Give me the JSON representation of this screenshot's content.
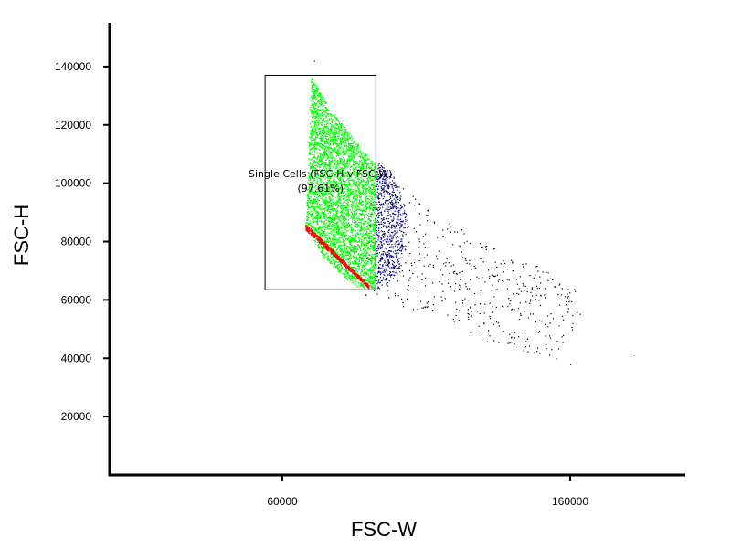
{
  "chart_data": {
    "type": "scatter",
    "title": "",
    "xlabel": "FSC-W",
    "ylabel": "FSC-H",
    "xlim": [
      0,
      200000
    ],
    "ylim": [
      0,
      155000
    ],
    "x_ticks": [
      {
        "value": 60000,
        "label": "60000"
      },
      {
        "value": 160000,
        "label": "160000"
      }
    ],
    "y_ticks": [
      {
        "value": 20000,
        "label": "20000"
      },
      {
        "value": 40000,
        "label": "40000"
      },
      {
        "value": 60000,
        "label": "60000"
      },
      {
        "value": 80000,
        "label": "80000"
      },
      {
        "value": 100000,
        "label": "100000"
      },
      {
        "value": 120000,
        "label": "120000"
      },
      {
        "value": 140000,
        "label": "140000"
      }
    ],
    "grid": false,
    "gate": {
      "name": "Single Cells (FSC-H v FSC-W)",
      "percent": "(97.61%)",
      "x_range": [
        54000,
        92500
      ],
      "y_range": [
        63500,
        137000
      ],
      "stroke_color": "#000000"
    },
    "populations": [
      {
        "color": "#00ff00",
        "description": "single cells",
        "polygon": [
          [
            70000,
            137000
          ],
          [
            76000,
            126000
          ],
          [
            92500,
            106000
          ],
          [
            92500,
            64000
          ],
          [
            86000,
            64500
          ],
          [
            80000,
            69000
          ],
          [
            74000,
            75000
          ],
          [
            70000,
            82000
          ],
          [
            68000,
            85000
          ],
          [
            69000,
            110000
          ]
        ],
        "count": 9000
      },
      {
        "color": "#ff0000",
        "description": "low edge",
        "band": {
          "x_start": 68000,
          "y_start": 84000,
          "x_end": 90000,
          "y_end": 64000,
          "thickness": 2200
        },
        "count": 700
      },
      {
        "color": "#000080",
        "description": "high width",
        "polygon": [
          [
            92500,
            108000
          ],
          [
            99000,
            102000
          ],
          [
            103000,
            90000
          ],
          [
            101000,
            70000
          ],
          [
            95000,
            64000
          ],
          [
            92500,
            64000
          ]
        ],
        "count": 650
      },
      {
        "color": "#000000",
        "description": "outliers",
        "polygon": [
          [
            92000,
            108000
          ],
          [
            110000,
            92000
          ],
          [
            130000,
            80000
          ],
          [
            160000,
            68000
          ],
          [
            165000,
            55000
          ],
          [
            155000,
            40000
          ],
          [
            130000,
            46000
          ],
          [
            110000,
            55000
          ],
          [
            95000,
            60000
          ],
          [
            88000,
            62000
          ]
        ],
        "count": 520
      }
    ],
    "outlier_points": [
      [
        71000,
        142000
      ],
      [
        182000,
        42000
      ],
      [
        160000,
        38000
      ],
      [
        155000,
        40000
      ]
    ]
  }
}
